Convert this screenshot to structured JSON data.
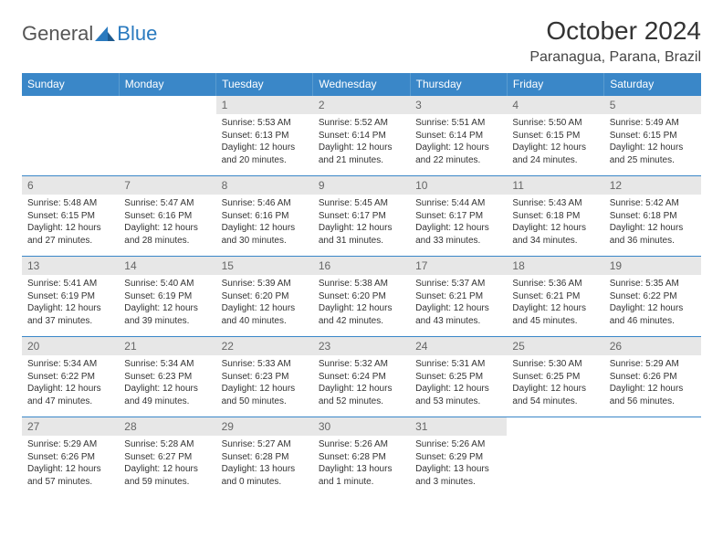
{
  "logo": {
    "text1": "General",
    "text2": "Blue"
  },
  "title": "October 2024",
  "location": "Paranagua, Parana, Brazil",
  "colors": {
    "header_bg": "#3a87c8",
    "header_border": "#5a9cd0",
    "daynum_bg": "#e7e7e7",
    "cell_border": "#3a87c8",
    "text": "#333333",
    "logo_blue": "#2a7abf"
  },
  "weekdays": [
    "Sunday",
    "Monday",
    "Tuesday",
    "Wednesday",
    "Thursday",
    "Friday",
    "Saturday"
  ],
  "weeks": [
    [
      null,
      null,
      {
        "n": "1",
        "sr": "5:53 AM",
        "ss": "6:13 PM",
        "dl": "12 hours and 20 minutes."
      },
      {
        "n": "2",
        "sr": "5:52 AM",
        "ss": "6:14 PM",
        "dl": "12 hours and 21 minutes."
      },
      {
        "n": "3",
        "sr": "5:51 AM",
        "ss": "6:14 PM",
        "dl": "12 hours and 22 minutes."
      },
      {
        "n": "4",
        "sr": "5:50 AM",
        "ss": "6:15 PM",
        "dl": "12 hours and 24 minutes."
      },
      {
        "n": "5",
        "sr": "5:49 AM",
        "ss": "6:15 PM",
        "dl": "12 hours and 25 minutes."
      }
    ],
    [
      {
        "n": "6",
        "sr": "5:48 AM",
        "ss": "6:15 PM",
        "dl": "12 hours and 27 minutes."
      },
      {
        "n": "7",
        "sr": "5:47 AM",
        "ss": "6:16 PM",
        "dl": "12 hours and 28 minutes."
      },
      {
        "n": "8",
        "sr": "5:46 AM",
        "ss": "6:16 PM",
        "dl": "12 hours and 30 minutes."
      },
      {
        "n": "9",
        "sr": "5:45 AM",
        "ss": "6:17 PM",
        "dl": "12 hours and 31 minutes."
      },
      {
        "n": "10",
        "sr": "5:44 AM",
        "ss": "6:17 PM",
        "dl": "12 hours and 33 minutes."
      },
      {
        "n": "11",
        "sr": "5:43 AM",
        "ss": "6:18 PM",
        "dl": "12 hours and 34 minutes."
      },
      {
        "n": "12",
        "sr": "5:42 AM",
        "ss": "6:18 PM",
        "dl": "12 hours and 36 minutes."
      }
    ],
    [
      {
        "n": "13",
        "sr": "5:41 AM",
        "ss": "6:19 PM",
        "dl": "12 hours and 37 minutes."
      },
      {
        "n": "14",
        "sr": "5:40 AM",
        "ss": "6:19 PM",
        "dl": "12 hours and 39 minutes."
      },
      {
        "n": "15",
        "sr": "5:39 AM",
        "ss": "6:20 PM",
        "dl": "12 hours and 40 minutes."
      },
      {
        "n": "16",
        "sr": "5:38 AM",
        "ss": "6:20 PM",
        "dl": "12 hours and 42 minutes."
      },
      {
        "n": "17",
        "sr": "5:37 AM",
        "ss": "6:21 PM",
        "dl": "12 hours and 43 minutes."
      },
      {
        "n": "18",
        "sr": "5:36 AM",
        "ss": "6:21 PM",
        "dl": "12 hours and 45 minutes."
      },
      {
        "n": "19",
        "sr": "5:35 AM",
        "ss": "6:22 PM",
        "dl": "12 hours and 46 minutes."
      }
    ],
    [
      {
        "n": "20",
        "sr": "5:34 AM",
        "ss": "6:22 PM",
        "dl": "12 hours and 47 minutes."
      },
      {
        "n": "21",
        "sr": "5:34 AM",
        "ss": "6:23 PM",
        "dl": "12 hours and 49 minutes."
      },
      {
        "n": "22",
        "sr": "5:33 AM",
        "ss": "6:23 PM",
        "dl": "12 hours and 50 minutes."
      },
      {
        "n": "23",
        "sr": "5:32 AM",
        "ss": "6:24 PM",
        "dl": "12 hours and 52 minutes."
      },
      {
        "n": "24",
        "sr": "5:31 AM",
        "ss": "6:25 PM",
        "dl": "12 hours and 53 minutes."
      },
      {
        "n": "25",
        "sr": "5:30 AM",
        "ss": "6:25 PM",
        "dl": "12 hours and 54 minutes."
      },
      {
        "n": "26",
        "sr": "5:29 AM",
        "ss": "6:26 PM",
        "dl": "12 hours and 56 minutes."
      }
    ],
    [
      {
        "n": "27",
        "sr": "5:29 AM",
        "ss": "6:26 PM",
        "dl": "12 hours and 57 minutes."
      },
      {
        "n": "28",
        "sr": "5:28 AM",
        "ss": "6:27 PM",
        "dl": "12 hours and 59 minutes."
      },
      {
        "n": "29",
        "sr": "5:27 AM",
        "ss": "6:28 PM",
        "dl": "13 hours and 0 minutes."
      },
      {
        "n": "30",
        "sr": "5:26 AM",
        "ss": "6:28 PM",
        "dl": "13 hours and 1 minute."
      },
      {
        "n": "31",
        "sr": "5:26 AM",
        "ss": "6:29 PM",
        "dl": "13 hours and 3 minutes."
      },
      null,
      null
    ]
  ]
}
